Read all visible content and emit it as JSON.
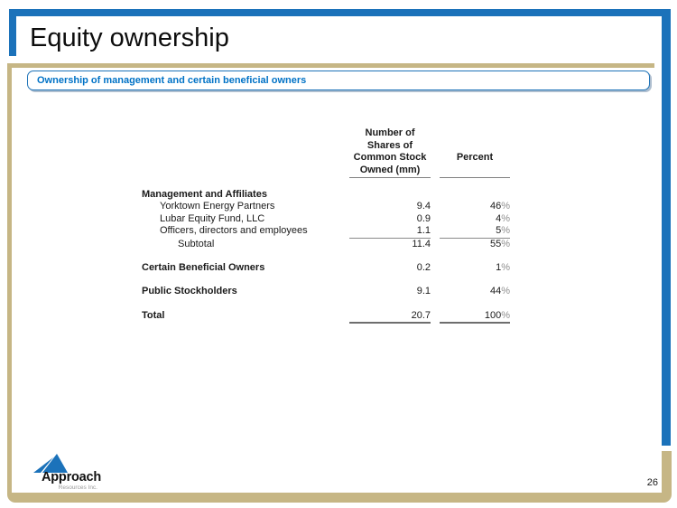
{
  "title": "Equity ownership",
  "banner": {
    "text": "Ownership of management and certain beneficial owners"
  },
  "table": {
    "columns": {
      "shares": {
        "lines": [
          "Number of",
          "Shares of",
          "Common Stock",
          "Owned (mm)"
        ]
      },
      "percent": "Percent"
    },
    "rows": [
      {
        "label": "Management and Affiliates",
        "shares": "",
        "percent": ""
      },
      {
        "label": "Yorktown Energy Partners",
        "shares": "9.4",
        "percent": "46%"
      },
      {
        "label": "Lubar Equity Fund, LLC",
        "shares": "0.9",
        "percent": "4%"
      },
      {
        "label": "Officers, directors and employees",
        "shares": "1.1",
        "percent": "5%"
      },
      {
        "label": "Subtotal",
        "shares": "11.4",
        "percent": "55%"
      },
      {
        "label": "Certain Beneficial Owners",
        "shares": "0.2",
        "percent": "1%"
      },
      {
        "label": "Public Stockholders",
        "shares": "9.1",
        "percent": "44%"
      },
      {
        "label": "Total",
        "shares": "20.7",
        "percent": "100%"
      }
    ]
  },
  "logo": {
    "name": "Approach",
    "subtitle": "Resources Inc."
  },
  "page_number": "26",
  "colors": {
    "accent_blue": "#1B72BA",
    "banner_blue": "#0072C6",
    "tan": "#C6B685"
  }
}
